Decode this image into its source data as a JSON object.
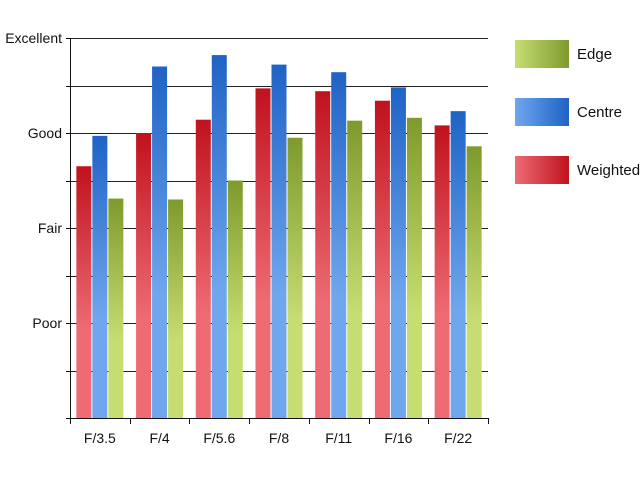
{
  "chart_data": {
    "type": "bar",
    "title": "",
    "xlabel": "",
    "ylabel": "",
    "categories": [
      "F/3.5",
      "F/4",
      "F/5.6",
      "F/8",
      "F/11",
      "F/16",
      "F/22"
    ],
    "y_tick_labels": [
      {
        "label": "Poor",
        "value": 1
      },
      {
        "label": "Fair",
        "value": 2
      },
      {
        "label": "Good",
        "value": 3
      },
      {
        "label": "Excellent",
        "value": 4
      }
    ],
    "ylim": [
      0,
      4
    ],
    "grid": true,
    "legend_position": "right",
    "series": [
      {
        "name": "Weighted",
        "color": "#c0121e",
        "values": [
          2.65,
          3.0,
          3.14,
          3.47,
          3.44,
          3.34,
          3.08
        ]
      },
      {
        "name": "Centre",
        "color": "#1f63c6",
        "values": [
          2.97,
          3.7,
          3.82,
          3.72,
          3.64,
          3.48,
          3.23
        ]
      },
      {
        "name": "Edge",
        "color": "#7f9a2c",
        "values": [
          2.31,
          2.3,
          2.5,
          2.95,
          3.13,
          3.16,
          2.86
        ]
      }
    ],
    "legend_order": [
      "Edge",
      "Centre",
      "Weighted"
    ]
  }
}
